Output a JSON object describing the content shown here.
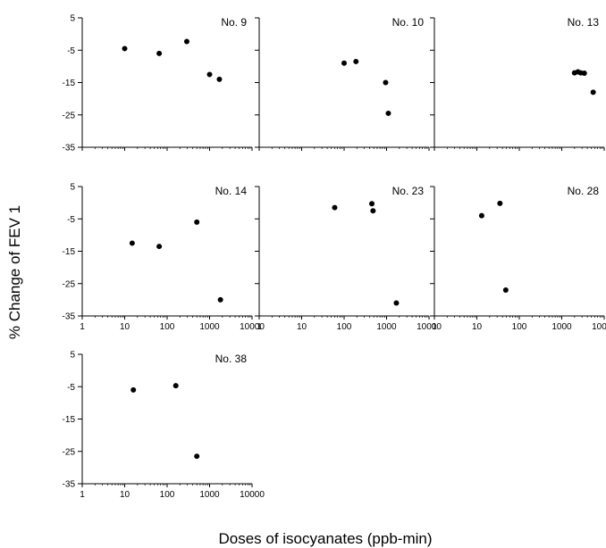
{
  "figure": {
    "ylabel": "% Change of FEV 1",
    "xlabel": "Doses of isocyanates (ppb-min)"
  },
  "chart_data": [
    {
      "type": "scatter",
      "title": "No. 9",
      "xscale": "log",
      "xlim": [
        1,
        10000
      ],
      "ylim": [
        -35,
        5
      ],
      "xticklabels": [],
      "yticklabels": [
        "5",
        "-5",
        "-15",
        "-25",
        "-35"
      ],
      "points": [
        [
          10,
          -4.5
        ],
        [
          65,
          -6
        ],
        [
          290,
          -2.3
        ],
        [
          1000,
          -12.5
        ],
        [
          1700,
          -14
        ]
      ]
    },
    {
      "type": "scatter",
      "title": "No. 10",
      "xscale": "log",
      "xlim": [
        1,
        10000
      ],
      "ylim": [
        -35,
        5
      ],
      "xticklabels": [],
      "yticklabels": [],
      "points": [
        [
          100,
          -9
        ],
        [
          190,
          -8.5
        ],
        [
          950,
          -15
        ],
        [
          1100,
          -24.5
        ]
      ]
    },
    {
      "type": "scatter",
      "title": "No. 13",
      "xscale": "log",
      "xlim": [
        1,
        10000
      ],
      "ylim": [
        -35,
        5
      ],
      "xticklabels": [],
      "yticklabels": [],
      "points": [
        [
          2000,
          -12
        ],
        [
          2400,
          -11.7
        ],
        [
          2800,
          -12
        ],
        [
          3400,
          -12.1
        ],
        [
          5500,
          -18
        ]
      ]
    },
    {
      "type": "scatter",
      "title": "No. 14",
      "xscale": "log",
      "xlim": [
        1,
        10000
      ],
      "ylim": [
        -35,
        5
      ],
      "xticklabels": [
        "1",
        "10",
        "100",
        "1000",
        "10000"
      ],
      "yticklabels": [
        "5",
        "-5",
        "-15",
        "-25",
        "-35"
      ],
      "points": [
        [
          15,
          -12.5
        ],
        [
          65,
          -13.5
        ],
        [
          500,
          -6
        ],
        [
          1800,
          -30
        ]
      ]
    },
    {
      "type": "scatter",
      "title": "No. 23",
      "xscale": "log",
      "xlim": [
        1,
        10000
      ],
      "ylim": [
        -35,
        5
      ],
      "xticklabels": [
        "1",
        "10",
        "100",
        "1000",
        "10000"
      ],
      "yticklabels": [],
      "points": [
        [
          60,
          -1.5
        ],
        [
          450,
          -0.3
        ],
        [
          480,
          -2.5
        ],
        [
          1700,
          -31
        ]
      ]
    },
    {
      "type": "scatter",
      "title": "No. 28",
      "xscale": "log",
      "xlim": [
        1,
        10000
      ],
      "ylim": [
        -35,
        5
      ],
      "xticklabels": [
        "1",
        "10",
        "100",
        "1000",
        "10000"
      ],
      "yticklabels": [],
      "points": [
        [
          13,
          -4
        ],
        [
          35,
          -0.2
        ],
        [
          48,
          -27
        ]
      ]
    },
    {
      "type": "scatter",
      "title": "No. 38",
      "xscale": "log",
      "xlim": [
        1,
        10000
      ],
      "ylim": [
        -35,
        5
      ],
      "xticklabels": [
        "1",
        "10",
        "100",
        "1000",
        "10000"
      ],
      "yticklabels": [
        "5",
        "-5",
        "-15",
        "-25",
        "-35"
      ],
      "points": [
        [
          16,
          -6
        ],
        [
          160,
          -4.7
        ],
        [
          500,
          -26.5
        ]
      ]
    }
  ]
}
